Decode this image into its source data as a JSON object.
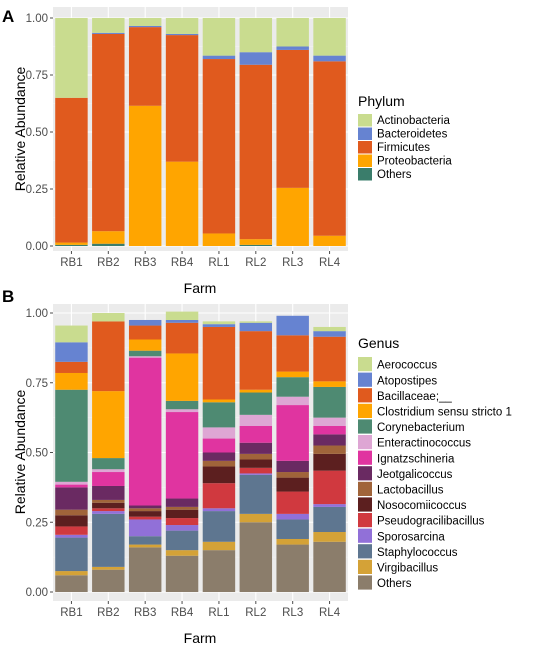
{
  "chart_data": [
    {
      "type": "bar",
      "stacked": true,
      "panel_label": "A",
      "xlabel": "Farm",
      "ylabel": "Relative Abundance",
      "ylim": [
        0,
        1
      ],
      "yticks": [
        "0.00",
        "0.25",
        "0.50",
        "0.75",
        "1.00"
      ],
      "grid": true,
      "legend_title": "Phylum",
      "legend_position": "right",
      "categories": [
        "RB1",
        "RB2",
        "RB3",
        "RB4",
        "RL1",
        "RL2",
        "RL3",
        "RL4"
      ],
      "series": [
        {
          "name": "Others",
          "color": "#3a7d6b",
          "values": [
            0.005,
            0.01,
            0.0,
            0.0,
            0.0,
            0.005,
            0.0,
            0.0
          ]
        },
        {
          "name": "Proteobacteria",
          "color": "#ffa500",
          "values": [
            0.01,
            0.055,
            0.615,
            0.37,
            0.055,
            0.025,
            0.255,
            0.045
          ]
        },
        {
          "name": "Firmicutes",
          "color": "#e05a1e",
          "values": [
            0.635,
            0.865,
            0.345,
            0.555,
            0.765,
            0.765,
            0.605,
            0.765
          ]
        },
        {
          "name": "Bacteroidetes",
          "color": "#6683d1",
          "values": [
            0.0,
            0.005,
            0.005,
            0.005,
            0.015,
            0.055,
            0.015,
            0.025
          ]
        },
        {
          "name": "Actinobacteria",
          "color": "#c9dc8f",
          "values": [
            0.35,
            0.065,
            0.035,
            0.07,
            0.165,
            0.15,
            0.125,
            0.165
          ]
        }
      ]
    },
    {
      "type": "bar",
      "stacked": true,
      "panel_label": "B",
      "xlabel": "Farm",
      "ylabel": "Relative Abundance",
      "ylim": [
        0,
        1
      ],
      "yticks": [
        "0.00",
        "0.25",
        "0.50",
        "0.75",
        "1.00"
      ],
      "grid": true,
      "legend_title": "Genus",
      "legend_position": "right",
      "categories": [
        "RB1",
        "RB2",
        "RB3",
        "RB4",
        "RL1",
        "RL2",
        "RL3",
        "RL4"
      ],
      "series": [
        {
          "name": "Others",
          "color": "#8b7d6b",
          "values": [
            0.06,
            0.08,
            0.16,
            0.13,
            0.15,
            0.25,
            0.17,
            0.18
          ]
        },
        {
          "name": "Virgibacillus",
          "color": "#d4a237",
          "values": [
            0.015,
            0.01,
            0.01,
            0.02,
            0.03,
            0.03,
            0.02,
            0.035
          ]
        },
        {
          "name": "Staphylococcus",
          "color": "#5e7690",
          "values": [
            0.12,
            0.19,
            0.03,
            0.07,
            0.11,
            0.14,
            0.07,
            0.09
          ]
        },
        {
          "name": "Sporosarcina",
          "color": "#9170d8",
          "values": [
            0.01,
            0.01,
            0.06,
            0.02,
            0.01,
            0.005,
            0.02,
            0.01
          ]
        },
        {
          "name": "Pseudogracilibacillus",
          "color": "#d0393f",
          "values": [
            0.03,
            0.01,
            0.01,
            0.025,
            0.09,
            0.02,
            0.08,
            0.12
          ]
        },
        {
          "name": "Nosocomiicoccus",
          "color": "#5c1f1f",
          "values": [
            0.04,
            0.02,
            0.02,
            0.03,
            0.06,
            0.03,
            0.05,
            0.06
          ]
        },
        {
          "name": "Lactobacillus",
          "color": "#a0643a",
          "values": [
            0.02,
            0.01,
            0.01,
            0.01,
            0.02,
            0.02,
            0.02,
            0.03
          ]
        },
        {
          "name": "Jeotgalicoccus",
          "color": "#6a2a62",
          "values": [
            0.08,
            0.05,
            0.01,
            0.03,
            0.03,
            0.04,
            0.04,
            0.04
          ]
        },
        {
          "name": "Ignatzschineria",
          "color": "#e034a0",
          "values": [
            0.01,
            0.05,
            0.53,
            0.31,
            0.05,
            0.06,
            0.2,
            0.03
          ]
        },
        {
          "name": "Enteractinococcus",
          "color": "#dea6d4",
          "values": [
            0.01,
            0.01,
            0.005,
            0.01,
            0.04,
            0.04,
            0.03,
            0.03
          ]
        },
        {
          "name": "Corynebacterium",
          "color": "#4e8a72",
          "values": [
            0.33,
            0.04,
            0.02,
            0.03,
            0.09,
            0.08,
            0.07,
            0.11
          ]
        },
        {
          "name": "Clostridium sensu stricto 1",
          "color": "#ffa500",
          "values": [
            0.06,
            0.24,
            0.04,
            0.17,
            0.01,
            0.01,
            0.02,
            0.02
          ]
        },
        {
          "name": "Bacillaceae;__",
          "color": "#e05a1e",
          "values": [
            0.04,
            0.25,
            0.05,
            0.11,
            0.26,
            0.21,
            0.13,
            0.16
          ]
        },
        {
          "name": "Atopostipes",
          "color": "#6683d1",
          "values": [
            0.07,
            0.0,
            0.02,
            0.01,
            0.01,
            0.03,
            0.07,
            0.02
          ]
        },
        {
          "name": "Aerococcus",
          "color": "#c9dc8f",
          "values": [
            0.06,
            0.03,
            0.0,
            0.03,
            0.01,
            0.005,
            0.0,
            0.015
          ]
        }
      ]
    }
  ]
}
